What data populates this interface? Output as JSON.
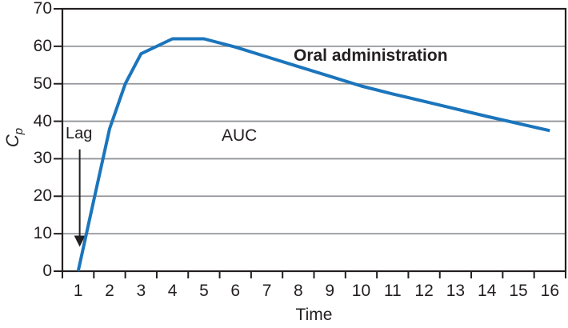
{
  "colors": {
    "line": "#1b75bc",
    "grid": "#939598",
    "axis": "#231f20",
    "text": "#231f20",
    "background": "#ffffff"
  },
  "chart_data": {
    "type": "line",
    "title": "",
    "xlabel": "Time",
    "ylabel": "Cp",
    "ylabel_main": "C",
    "ylabel_sub": "p",
    "x_tick_labels": [
      "1",
      "2",
      "3",
      "4",
      "5",
      "6",
      "7",
      "8",
      "9",
      "10",
      "11",
      "12",
      "13",
      "14",
      "15",
      "16"
    ],
    "y_tick_labels": [
      "0",
      "10",
      "20",
      "30",
      "40",
      "50",
      "60",
      "70"
    ],
    "ylim": [
      0,
      70
    ],
    "x_categories": 16,
    "grid": "horizontal gray lines at every 10 units, dark border box around plot",
    "legend_position": "none",
    "series": [
      {
        "name": "Oral administration",
        "color": "#1b75bc",
        "points": [
          [
            1,
            0
          ],
          [
            1.5,
            19
          ],
          [
            2,
            38
          ],
          [
            2.5,
            50
          ],
          [
            3,
            58
          ],
          [
            4,
            62
          ],
          [
            5,
            62
          ],
          [
            6,
            59.8
          ],
          [
            7,
            57.2
          ],
          [
            8,
            54.6
          ],
          [
            9,
            52
          ],
          [
            10,
            49.4
          ],
          [
            11,
            47.3
          ],
          [
            12,
            45.3
          ],
          [
            13,
            43.3
          ],
          [
            14,
            41.3
          ],
          [
            15,
            39.4
          ],
          [
            16,
            37.5
          ]
        ]
      }
    ],
    "annotations": {
      "lag": {
        "text": "Lag",
        "arrow_t": 1.05,
        "arrow_from_cp": 32.5,
        "arrow_to_cp": 6.5
      },
      "auc": {
        "text": "AUC"
      },
      "series_label": {
        "text": "Oral administration"
      }
    }
  }
}
